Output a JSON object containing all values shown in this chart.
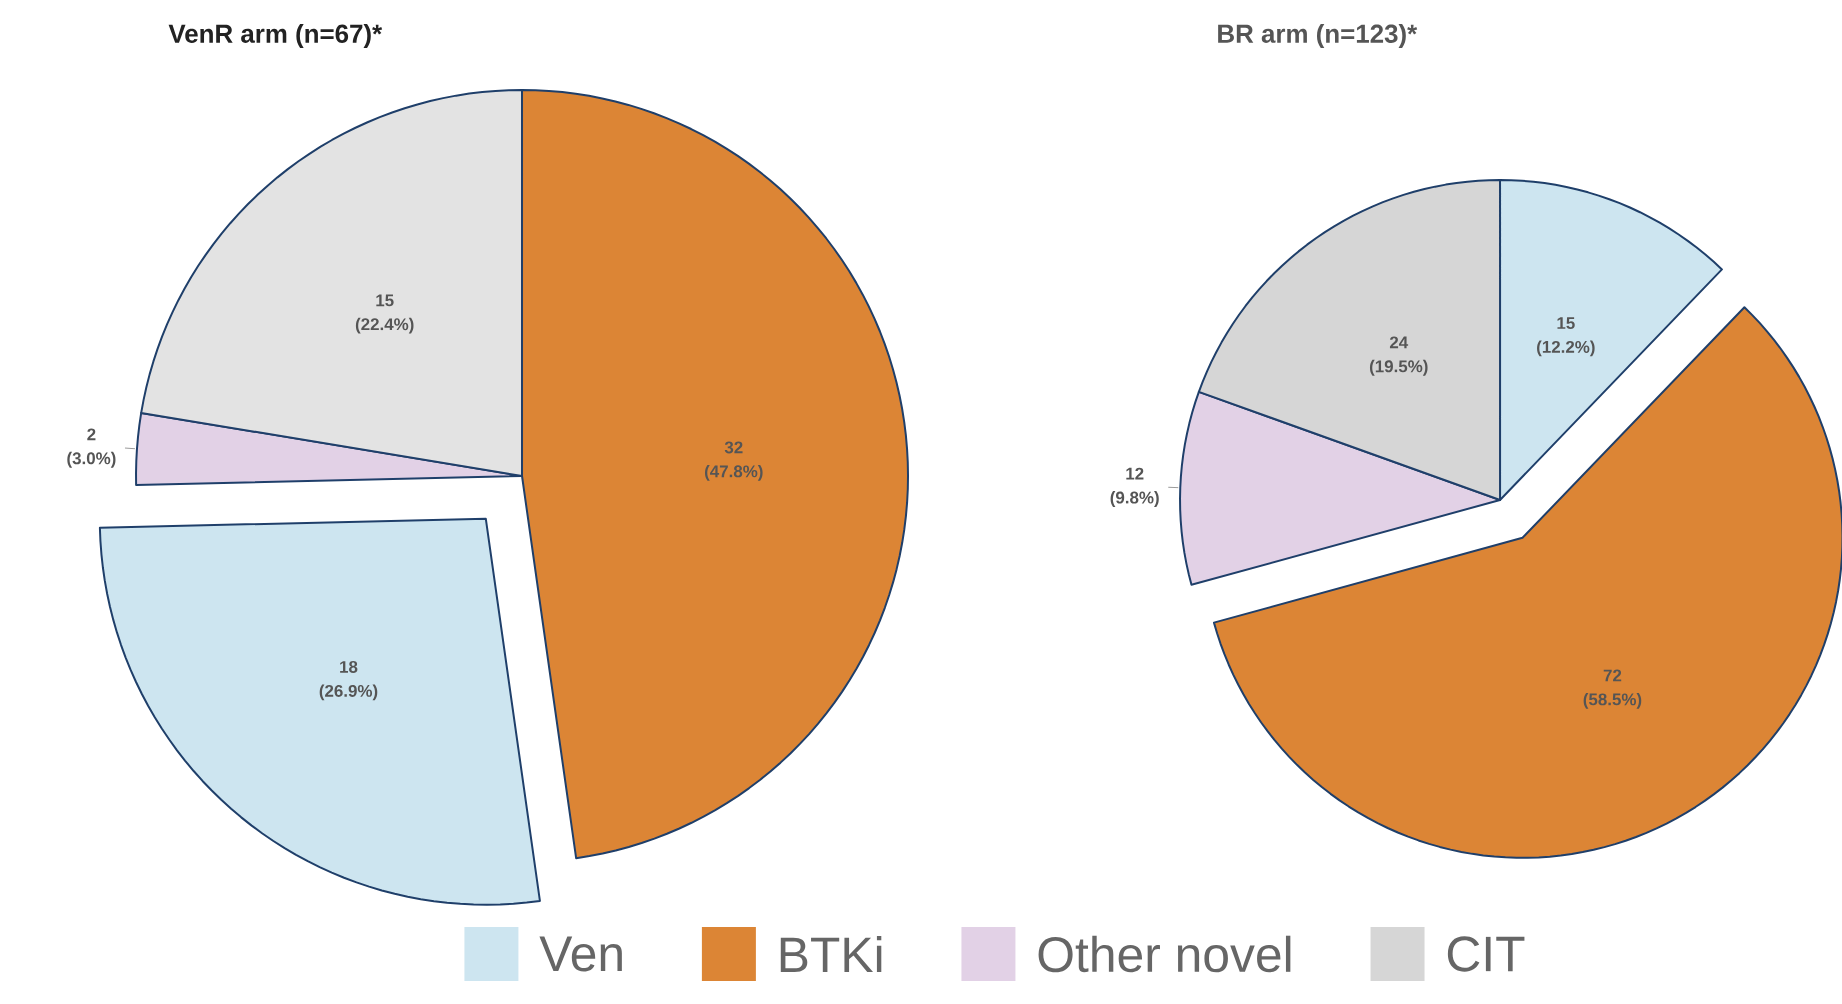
{
  "chart_data": [
    {
      "type": "pie",
      "title": "VenR arm (n=67)*",
      "categories": [
        null,
        null,
        null,
        null
      ],
      "values": [
        32,
        18,
        2,
        15
      ],
      "colors": [
        "#dc8535",
        "#cde5f0",
        "#e2d1e6",
        "#e3e3e3"
      ],
      "value_labels": [
        "32 (47.8%)",
        "18 (26.9%)",
        "2 (3.0%)",
        "15 (22.4%)"
      ]
    },
    {
      "type": "pie",
      "title": "BR arm (n=123)*",
      "categories": [
        "Ven",
        "BTKi",
        "Other novel",
        "CIT"
      ],
      "values": [
        15,
        72,
        12,
        24
      ],
      "colors": [
        "#cde5f0",
        "#dc8535",
        "#e2d1e6",
        "#d6d6d6"
      ],
      "value_labels": [
        "15 (12.2%)",
        "72 (58.5%)",
        "12 (9.8%)",
        "24 (19.5%)"
      ],
      "legend": "bottom"
    }
  ]
}
